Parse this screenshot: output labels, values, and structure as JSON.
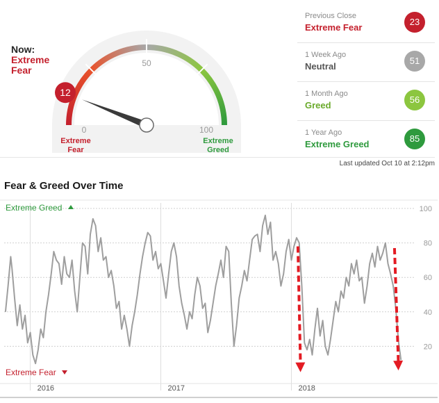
{
  "gauge": {
    "now_label": "Now:",
    "now_value": "Extreme Fear",
    "score": 12,
    "tick_0": "0",
    "tick_50": "50",
    "tick_100": "100",
    "label_fear": "Extreme Fear",
    "label_greed": "Extreme Greed",
    "colors": {
      "extreme_fear": "#c4202d",
      "fear": "#e8532c",
      "neutral": "#a8a8a8",
      "greed": "#8cc63f",
      "extreme_greed": "#2e9a3d",
      "needle": "#3a3a3a",
      "dial_bg": "#f2f2f2"
    }
  },
  "history": [
    {
      "caption": "Previous Close",
      "value": "Extreme Fear",
      "score": "23",
      "text_color": "#c4202d",
      "badge_color": "#c4202d"
    },
    {
      "caption": "1 Week Ago",
      "value": "Neutral",
      "score": "51",
      "text_color": "#555555",
      "badge_color": "#a8a8a8"
    },
    {
      "caption": "1 Month Ago",
      "value": "Greed",
      "score": "56",
      "text_color": "#6aaa2b",
      "badge_color": "#8cc63f"
    },
    {
      "caption": "1 Year Ago",
      "value": "Extreme Greed",
      "score": "85",
      "text_color": "#2e9a3d",
      "badge_color": "#2e9a3d"
    }
  ],
  "last_updated": "Last updated Oct 10 at 2:12pm",
  "section_title": "Fear & Greed Over Time",
  "chart_data": {
    "type": "line",
    "title": "Fear & Greed Over Time",
    "top_label": "Extreme Greed",
    "bottom_label": "Extreme Fear",
    "ylim": [
      0,
      100
    ],
    "yticks": [
      20,
      40,
      60,
      80,
      100
    ],
    "xlim": [
      2015.8,
      2018.95
    ],
    "xticks": [
      {
        "x": 2016,
        "label": "2016"
      },
      {
        "x": 2017,
        "label": "2017"
      },
      {
        "x": 2018,
        "label": "2018"
      }
    ],
    "grid": true,
    "series": [
      {
        "points": [
          [
            2015.81,
            40
          ],
          [
            2015.83,
            55
          ],
          [
            2015.85,
            72
          ],
          [
            2015.86,
            65
          ],
          [
            2015.88,
            48
          ],
          [
            2015.9,
            32
          ],
          [
            2015.92,
            44
          ],
          [
            2015.94,
            30
          ],
          [
            2015.96,
            38
          ],
          [
            2015.98,
            22
          ],
          [
            2016.0,
            28
          ],
          [
            2016.02,
            15
          ],
          [
            2016.04,
            10
          ],
          [
            2016.06,
            18
          ],
          [
            2016.08,
            30
          ],
          [
            2016.1,
            25
          ],
          [
            2016.12,
            40
          ],
          [
            2016.14,
            50
          ],
          [
            2016.16,
            62
          ],
          [
            2016.18,
            75
          ],
          [
            2016.2,
            70
          ],
          [
            2016.22,
            68
          ],
          [
            2016.24,
            56
          ],
          [
            2016.26,
            72
          ],
          [
            2016.28,
            62
          ],
          [
            2016.3,
            60
          ],
          [
            2016.32,
            70
          ],
          [
            2016.34,
            52
          ],
          [
            2016.36,
            40
          ],
          [
            2016.38,
            60
          ],
          [
            2016.4,
            80
          ],
          [
            2016.42,
            78
          ],
          [
            2016.44,
            62
          ],
          [
            2016.46,
            85
          ],
          [
            2016.48,
            94
          ],
          [
            2016.5,
            90
          ],
          [
            2016.52,
            75
          ],
          [
            2016.54,
            83
          ],
          [
            2016.56,
            70
          ],
          [
            2016.58,
            72
          ],
          [
            2016.6,
            60
          ],
          [
            2016.62,
            64
          ],
          [
            2016.64,
            55
          ],
          [
            2016.66,
            42
          ],
          [
            2016.68,
            46
          ],
          [
            2016.7,
            30
          ],
          [
            2016.72,
            38
          ],
          [
            2016.74,
            30
          ],
          [
            2016.76,
            20
          ],
          [
            2016.78,
            32
          ],
          [
            2016.8,
            40
          ],
          [
            2016.82,
            50
          ],
          [
            2016.84,
            62
          ],
          [
            2016.86,
            72
          ],
          [
            2016.88,
            80
          ],
          [
            2016.9,
            86
          ],
          [
            2016.92,
            84
          ],
          [
            2016.94,
            70
          ],
          [
            2016.96,
            75
          ],
          [
            2016.98,
            65
          ],
          [
            2017.0,
            68
          ],
          [
            2017.02,
            58
          ],
          [
            2017.04,
            48
          ],
          [
            2017.06,
            62
          ],
          [
            2017.08,
            75
          ],
          [
            2017.1,
            80
          ],
          [
            2017.12,
            72
          ],
          [
            2017.14,
            55
          ],
          [
            2017.16,
            45
          ],
          [
            2017.18,
            38
          ],
          [
            2017.2,
            30
          ],
          [
            2017.22,
            40
          ],
          [
            2017.24,
            36
          ],
          [
            2017.26,
            50
          ],
          [
            2017.28,
            60
          ],
          [
            2017.3,
            55
          ],
          [
            2017.32,
            42
          ],
          [
            2017.34,
            45
          ],
          [
            2017.36,
            28
          ],
          [
            2017.38,
            35
          ],
          [
            2017.4,
            45
          ],
          [
            2017.42,
            55
          ],
          [
            2017.44,
            62
          ],
          [
            2017.46,
            70
          ],
          [
            2017.48,
            60
          ],
          [
            2017.5,
            78
          ],
          [
            2017.52,
            75
          ],
          [
            2017.54,
            45
          ],
          [
            2017.56,
            20
          ],
          [
            2017.58,
            32
          ],
          [
            2017.6,
            48
          ],
          [
            2017.62,
            55
          ],
          [
            2017.64,
            64
          ],
          [
            2017.66,
            58
          ],
          [
            2017.68,
            70
          ],
          [
            2017.7,
            82
          ],
          [
            2017.72,
            84
          ],
          [
            2017.74,
            85
          ],
          [
            2017.76,
            75
          ],
          [
            2017.78,
            90
          ],
          [
            2017.8,
            96
          ],
          [
            2017.82,
            85
          ],
          [
            2017.84,
            92
          ],
          [
            2017.86,
            70
          ],
          [
            2017.88,
            75
          ],
          [
            2017.9,
            68
          ],
          [
            2017.92,
            55
          ],
          [
            2017.94,
            62
          ],
          [
            2017.96,
            75
          ],
          [
            2017.98,
            82
          ],
          [
            2018.0,
            70
          ],
          [
            2018.02,
            78
          ],
          [
            2018.04,
            83
          ],
          [
            2018.06,
            80
          ],
          [
            2018.08,
            55
          ],
          [
            2018.1,
            22
          ],
          [
            2018.12,
            18
          ],
          [
            2018.14,
            24
          ],
          [
            2018.16,
            15
          ],
          [
            2018.18,
            30
          ],
          [
            2018.2,
            42
          ],
          [
            2018.22,
            26
          ],
          [
            2018.24,
            35
          ],
          [
            2018.26,
            20
          ],
          [
            2018.28,
            15
          ],
          [
            2018.3,
            24
          ],
          [
            2018.32,
            35
          ],
          [
            2018.34,
            46
          ],
          [
            2018.36,
            40
          ],
          [
            2018.38,
            52
          ],
          [
            2018.4,
            48
          ],
          [
            2018.42,
            60
          ],
          [
            2018.44,
            55
          ],
          [
            2018.46,
            68
          ],
          [
            2018.48,
            62
          ],
          [
            2018.5,
            70
          ],
          [
            2018.52,
            58
          ],
          [
            2018.54,
            60
          ],
          [
            2018.56,
            45
          ],
          [
            2018.58,
            55
          ],
          [
            2018.6,
            68
          ],
          [
            2018.62,
            74
          ],
          [
            2018.64,
            66
          ],
          [
            2018.66,
            78
          ],
          [
            2018.68,
            70
          ],
          [
            2018.7,
            74
          ],
          [
            2018.72,
            80
          ],
          [
            2018.74,
            68
          ],
          [
            2018.76,
            62
          ],
          [
            2018.78,
            55
          ],
          [
            2018.8,
            42
          ],
          [
            2018.82,
            23
          ],
          [
            2018.84,
            12
          ]
        ]
      }
    ],
    "annotations": [
      {
        "from": [
          2018.05,
          78
        ],
        "to": [
          2018.07,
          5
        ]
      },
      {
        "from": [
          2018.79,
          77
        ],
        "to": [
          2018.82,
          6
        ]
      }
    ]
  }
}
